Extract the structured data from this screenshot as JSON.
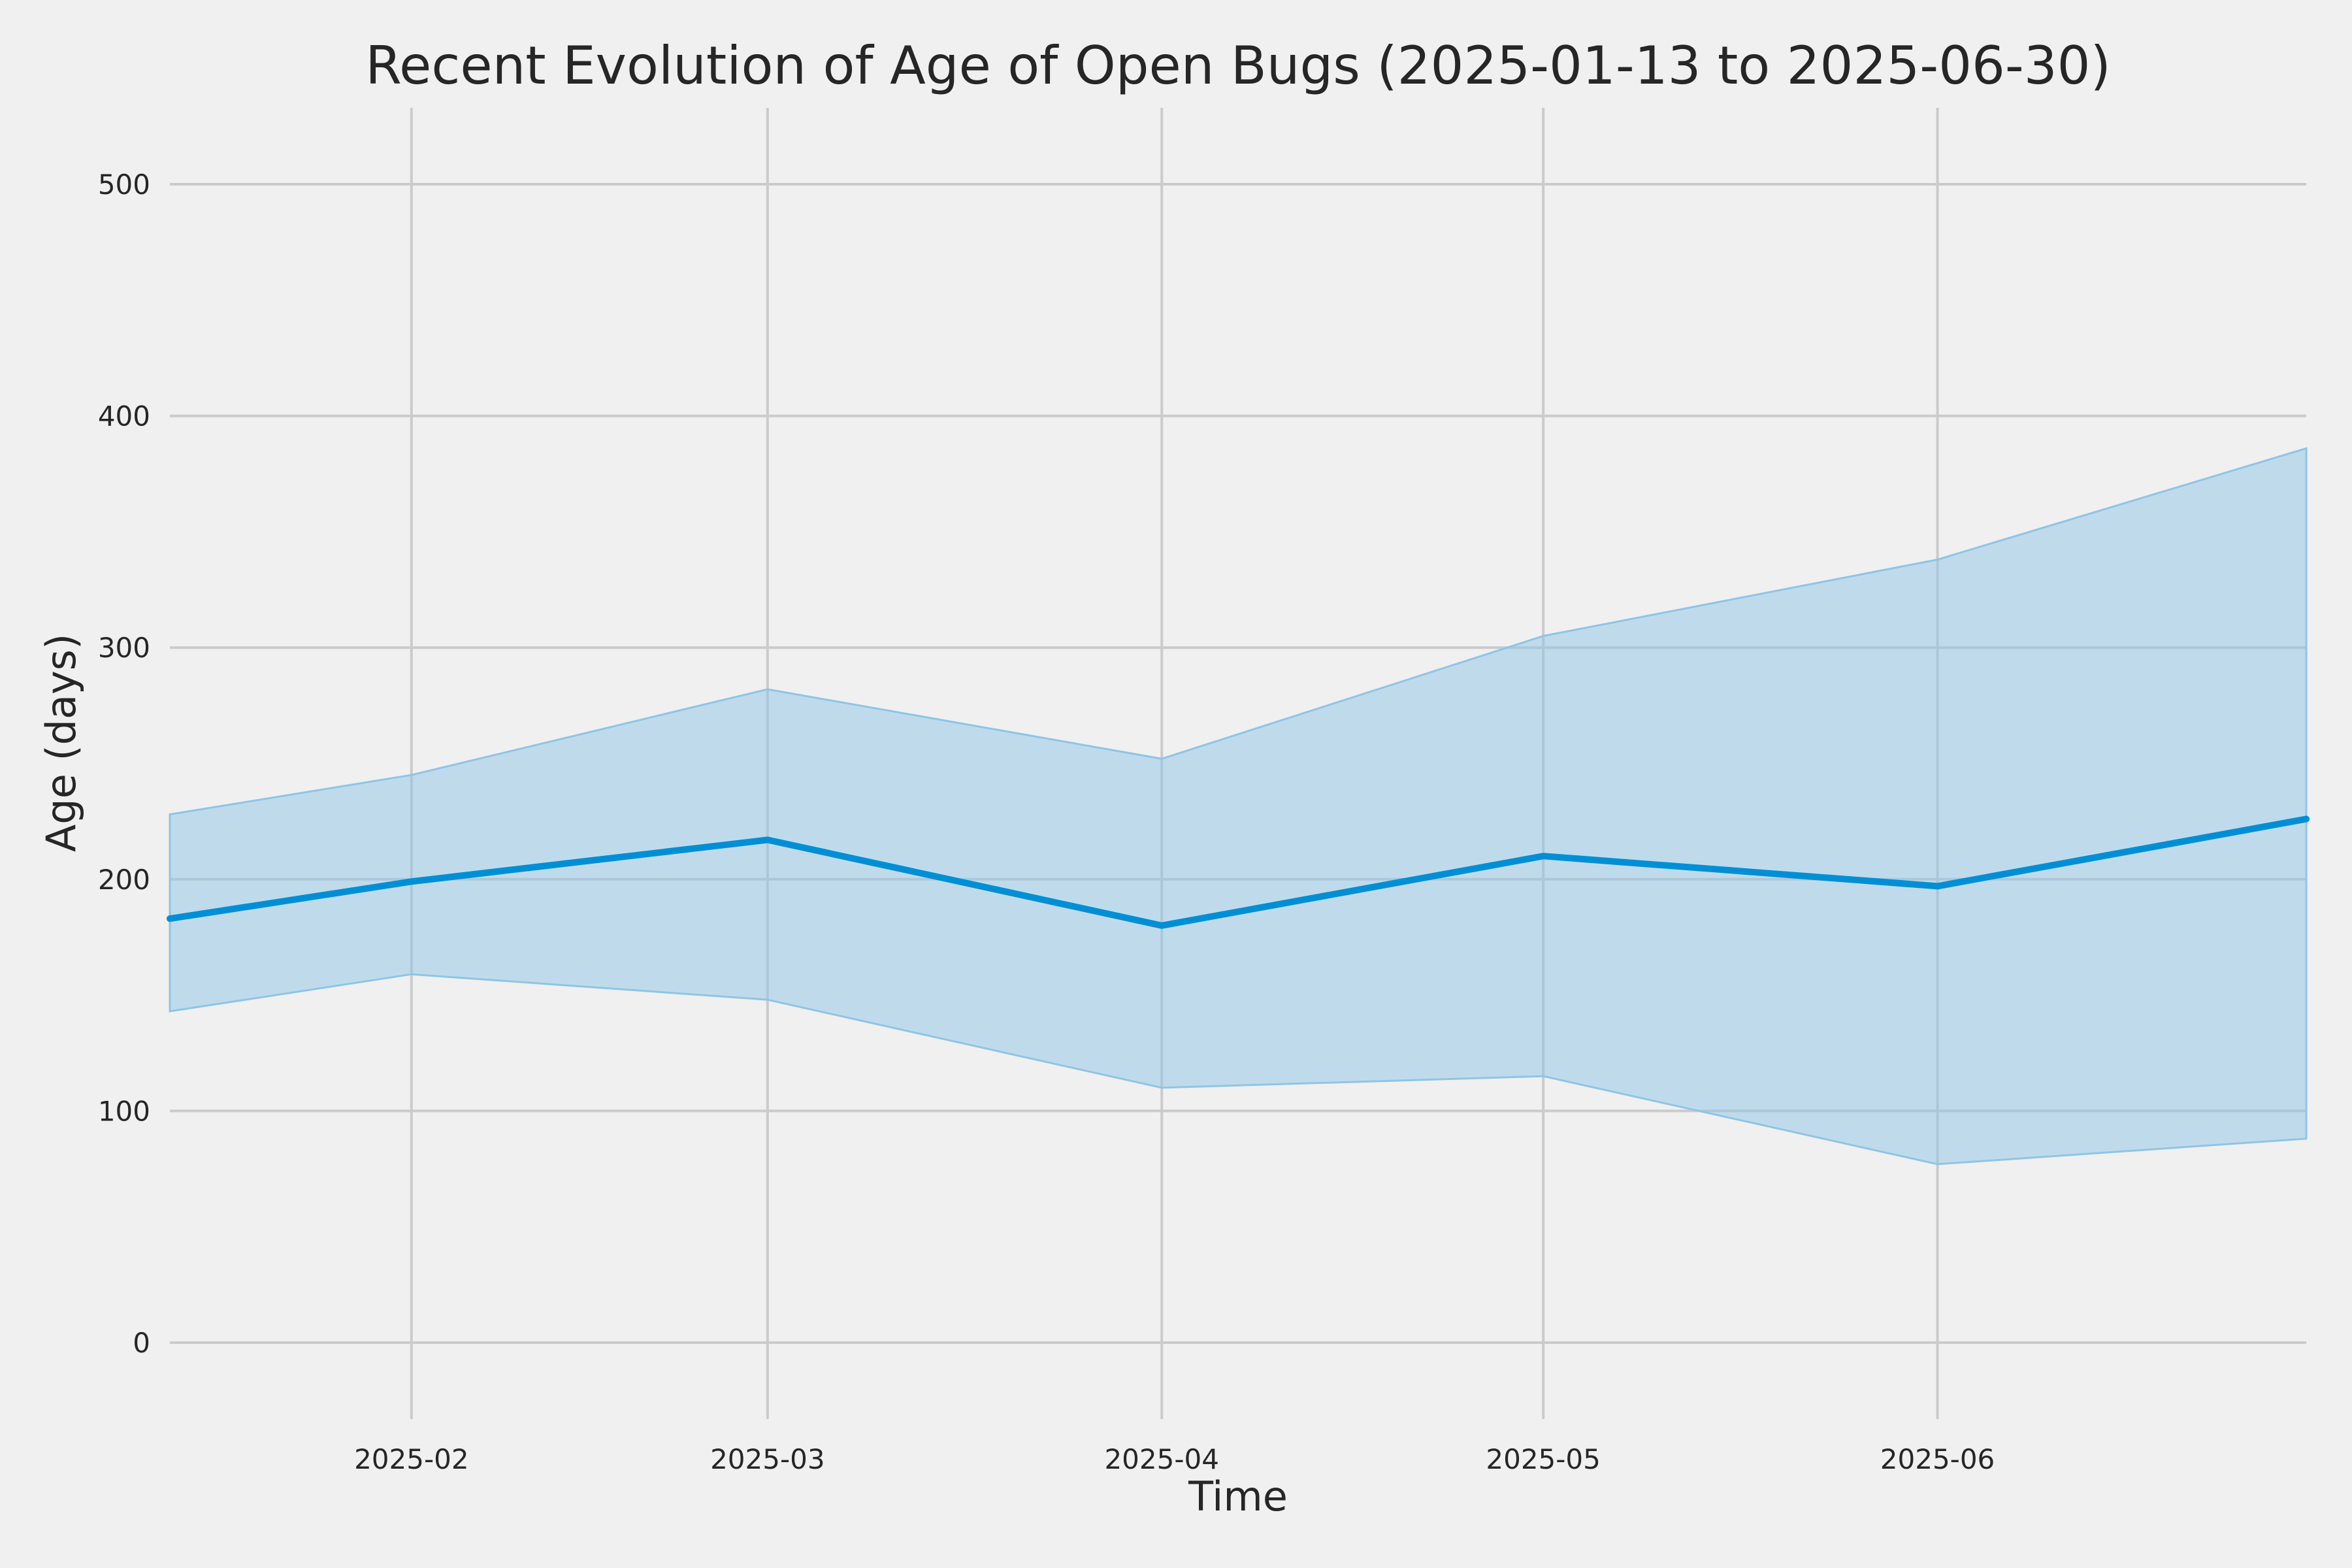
{
  "chart_data": {
    "type": "line",
    "title": "Recent Evolution of Age of Open Bugs (2025-01-13 to 2025-06-30)",
    "xlabel": "Time",
    "ylabel": "Age (days)",
    "xlim": [
      "2025-01-13",
      "2025-06-30"
    ],
    "ylim": [
      -33,
      533
    ],
    "x_ticks": [
      "2025-02",
      "2025-03",
      "2025-04",
      "2025-05",
      "2025-06"
    ],
    "y_ticks": [
      0,
      100,
      200,
      300,
      400,
      500
    ],
    "grid": true,
    "colors": {
      "line": "#008fd5",
      "band": "#8ec5e6",
      "background": "#f0f0f0",
      "grid": "#cbcbcb"
    },
    "x": [
      "2025-01-13",
      "2025-02-01",
      "2025-03-01",
      "2025-04-01",
      "2025-05-01",
      "2025-06-01",
      "2025-06-30"
    ],
    "series": [
      {
        "values": [
          183,
          199,
          217,
          180,
          210,
          197,
          226
        ]
      }
    ],
    "band": {
      "lower": [
        143,
        159,
        148,
        110,
        115,
        77,
        88
      ],
      "upper": [
        228,
        245,
        282,
        252,
        305,
        338,
        386
      ]
    }
  }
}
